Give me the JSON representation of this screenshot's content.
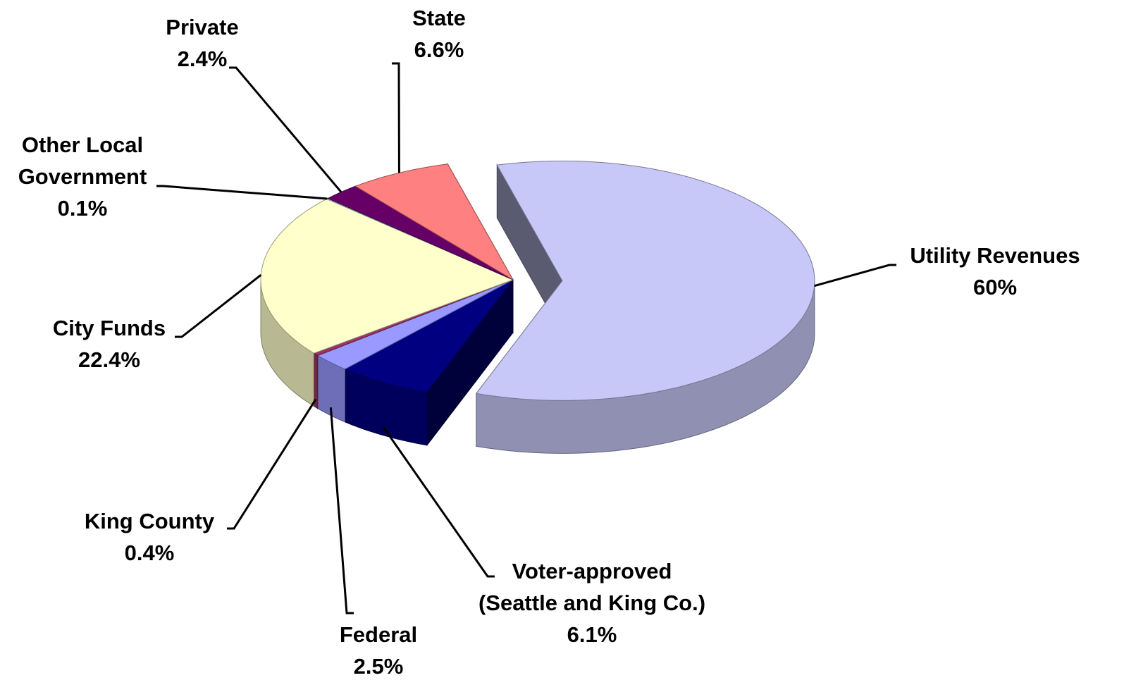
{
  "chart_data": {
    "type": "pie3d",
    "categories": [
      "Utility Revenues",
      "Voter-approved (Seattle and King Co.)",
      "Federal",
      "King County",
      "City Funds",
      "Other Local Government",
      "Private",
      "State"
    ],
    "values": [
      60,
      6.1,
      2.5,
      0.4,
      22.4,
      0.1,
      2.4,
      6.6
    ],
    "value_labels": [
      "60%",
      "6.1%",
      "2.5%",
      "0.4%",
      "22.4%",
      "0.1%",
      "2.4%",
      "6.6%"
    ],
    "colors": [
      "#c8c8f8",
      "#000080",
      "#9999ff",
      "#993366",
      "#ffffcc",
      "#ccffff",
      "#660066",
      "#ff8080"
    ]
  }
}
